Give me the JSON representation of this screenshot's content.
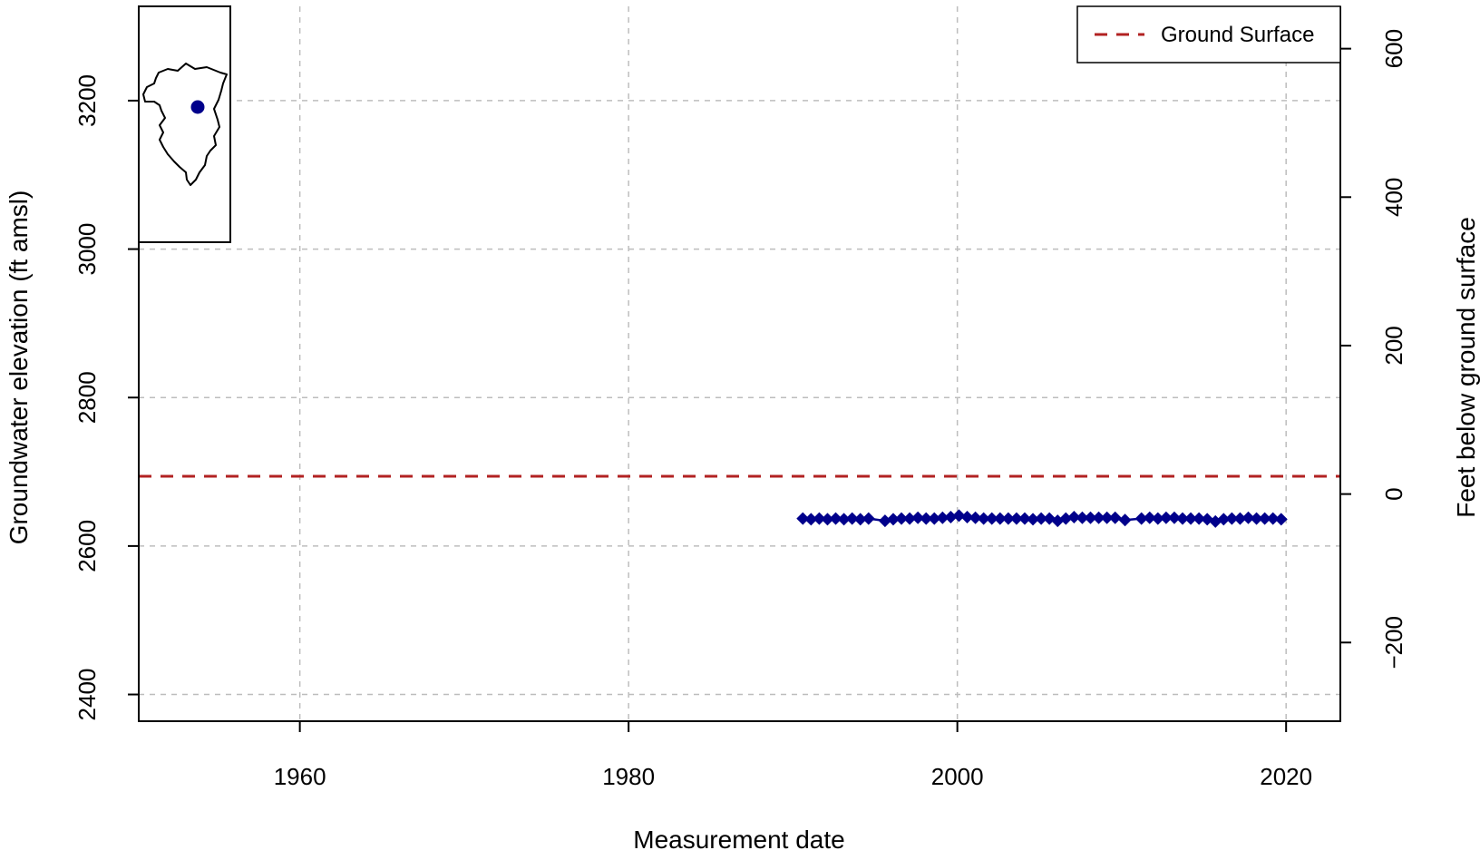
{
  "chart_data": {
    "type": "line",
    "xlabel": "Measurement date",
    "ylabel": "Groundwater elevation (ft amsl)",
    "y2label": "Feet below ground surface",
    "xlim": [
      1950.2,
      2023.3
    ],
    "ylim": [
      2364,
      3327
    ],
    "y2lim": [
      -306,
      657
    ],
    "x_ticks": [
      "1960",
      "1980",
      "2000",
      "2020"
    ],
    "x_tick_values": [
      1960,
      1980,
      2000,
      2020
    ],
    "y_ticks": [
      "2400",
      "2600",
      "2800",
      "3000",
      "3200"
    ],
    "y_tick_values": [
      2400,
      2600,
      2800,
      3000,
      3200
    ],
    "y2_ticks": [
      "−200",
      "0",
      "200",
      "400",
      "600"
    ],
    "y2_tick_values": [
      -200,
      0,
      200,
      400,
      600
    ],
    "ground_surface_elevation": 2694,
    "grid": true,
    "legend": {
      "position": "top-right",
      "entries": [
        {
          "label": "Ground Surface",
          "color": "#b22222",
          "style": "dashed"
        }
      ]
    },
    "series": [
      {
        "color": "#00008b",
        "marker": "diamond",
        "x": [
          1990.6,
          1991.1,
          1991.6,
          1992.1,
          1992.6,
          1993.1,
          1993.6,
          1994.1,
          1994.6,
          1995.6,
          1996.1,
          1996.6,
          1997.1,
          1997.6,
          1998.1,
          1998.6,
          1999.1,
          1999.6,
          2000.1,
          2000.6,
          2001.1,
          2001.6,
          2002.1,
          2002.6,
          2003.1,
          2003.6,
          2004.1,
          2004.6,
          2005.1,
          2005.6,
          2006.1,
          2006.6,
          2007.1,
          2007.6,
          2008.1,
          2008.6,
          2009.1,
          2009.6,
          2010.2,
          2011.2,
          2011.7,
          2012.2,
          2012.7,
          2013.2,
          2013.7,
          2014.2,
          2014.7,
          2015.2,
          2015.7,
          2016.2,
          2016.7,
          2017.2,
          2017.7,
          2018.2,
          2018.7,
          2019.2,
          2019.7
        ],
        "y": [
          2637,
          2636,
          2637,
          2636,
          2637,
          2636,
          2637,
          2636,
          2637,
          2634,
          2636,
          2637,
          2637,
          2638,
          2637,
          2637,
          2638,
          2639,
          2641,
          2639,
          2638,
          2637,
          2637,
          2637,
          2637,
          2637,
          2637,
          2636,
          2637,
          2637,
          2634,
          2637,
          2639,
          2638,
          2638,
          2638,
          2638,
          2638,
          2635,
          2637,
          2638,
          2637,
          2638,
          2638,
          2637,
          2637,
          2637,
          2636,
          2633,
          2636,
          2637,
          2637,
          2638,
          2637,
          2637,
          2637,
          2636
        ]
      }
    ],
    "inset_map": {
      "position": "top-left",
      "marker_color": "#00008b"
    }
  }
}
